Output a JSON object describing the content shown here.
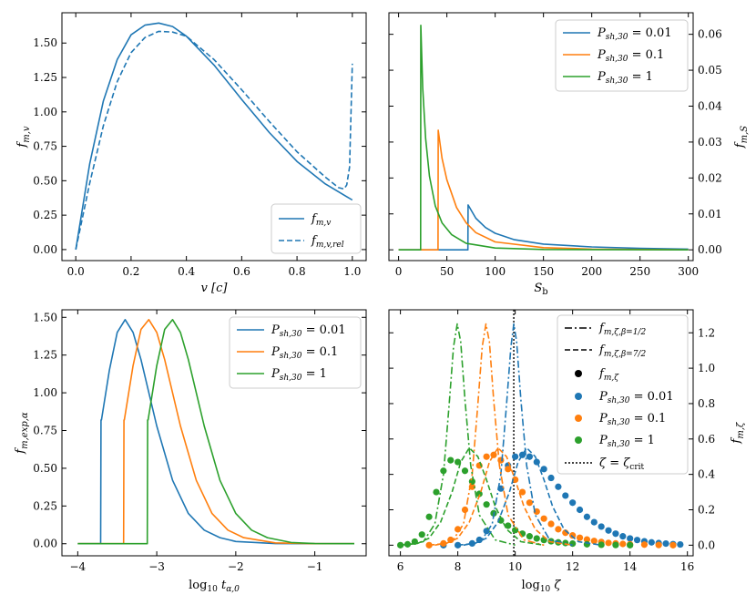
{
  "colors": {
    "blue": "#1f77b4",
    "orange": "#ff7f0e",
    "green": "#2ca02c",
    "black": "#000000"
  },
  "chart_data": [
    {
      "type": "line",
      "id": "p1",
      "xlabel": "v [c]",
      "ylabel": "f_{m,v}",
      "xlim": [
        -0.05,
        1.05
      ],
      "ylim": [
        -0.08,
        1.72
      ],
      "xticks": [
        0.0,
        0.2,
        0.4,
        0.6,
        0.8,
        1.0
      ],
      "yticks": [
        0.0,
        0.25,
        0.5,
        0.75,
        1.0,
        1.25,
        1.5
      ],
      "xtick_labels": [
        "0.0",
        "0.2",
        "0.4",
        "0.6",
        "0.8",
        "1.0"
      ],
      "ytick_labels": [
        "0.00",
        "0.25",
        "0.50",
        "0.75",
        "1.00",
        "1.25",
        "1.50"
      ],
      "legend": "lower-right",
      "series": [
        {
          "name": "f_{m,v}",
          "color": "blue",
          "dash": "solid",
          "x": [
            0.0,
            0.05,
            0.1,
            0.15,
            0.2,
            0.25,
            0.3,
            0.35,
            0.4,
            0.5,
            0.6,
            0.7,
            0.8,
            0.9,
            1.0
          ],
          "y": [
            0.0,
            0.62,
            1.08,
            1.38,
            1.56,
            1.63,
            1.645,
            1.62,
            1.55,
            1.34,
            1.09,
            0.85,
            0.64,
            0.48,
            0.36
          ]
        },
        {
          "name": "f_{m,v,rel}",
          "color": "blue",
          "dash": "dashed",
          "x": [
            0.0,
            0.05,
            0.1,
            0.15,
            0.2,
            0.25,
            0.3,
            0.35,
            0.4,
            0.5,
            0.6,
            0.7,
            0.8,
            0.9,
            0.95,
            0.97,
            0.98,
            0.99,
            1.0
          ],
          "y": [
            0.0,
            0.48,
            0.9,
            1.22,
            1.43,
            1.54,
            1.585,
            1.58,
            1.55,
            1.38,
            1.16,
            0.93,
            0.71,
            0.53,
            0.45,
            0.44,
            0.47,
            0.6,
            1.35
          ]
        }
      ]
    },
    {
      "type": "line",
      "id": "p2",
      "xlabel": "S_b",
      "ylabel": "f_{m,S}",
      "xlim": [
        -10,
        305
      ],
      "ylim": [
        -0.003,
        0.066
      ],
      "xticks": [
        0,
        50,
        100,
        150,
        200,
        250,
        300
      ],
      "yticks": [
        0.0,
        0.01,
        0.02,
        0.03,
        0.04,
        0.05,
        0.06
      ],
      "xtick_labels": [
        "0",
        "50",
        "100",
        "150",
        "200",
        "250",
        "300"
      ],
      "ytick_labels": [
        "0.00",
        "0.01",
        "0.02",
        "0.03",
        "0.04",
        "0.05",
        "0.06"
      ],
      "legend": "top-right",
      "series": [
        {
          "name": "P_{sh,30} = 0.01",
          "color": "blue",
          "dash": "solid",
          "x": [
            0,
            71,
            71.8,
            72,
            80,
            90,
            100,
            120,
            150,
            200,
            250,
            300
          ],
          "y": [
            0,
            0,
            0,
            0.0125,
            0.0088,
            0.0062,
            0.0046,
            0.0028,
            0.0016,
            0.0008,
            0.0004,
            0.0002
          ]
        },
        {
          "name": "P_{sh,30} = 0.1",
          "color": "orange",
          "dash": "solid",
          "x": [
            0,
            40,
            40.8,
            41,
            45,
            50,
            60,
            70,
            80,
            100,
            150,
            200,
            300
          ],
          "y": [
            0,
            0,
            0,
            0.0333,
            0.0255,
            0.0195,
            0.0118,
            0.0075,
            0.0048,
            0.0022,
            0.0006,
            0.0002,
            0.0
          ]
        },
        {
          "name": "P_{sh,30} = 1",
          "color": "green",
          "dash": "solid",
          "x": [
            0,
            22,
            22.8,
            23,
            25,
            28,
            32,
            38,
            45,
            55,
            70,
            100,
            150,
            300
          ],
          "y": [
            0,
            0,
            0,
            0.0625,
            0.045,
            0.031,
            0.0205,
            0.0122,
            0.0075,
            0.0042,
            0.0018,
            0.0005,
            0.0001,
            0.0
          ]
        }
      ]
    },
    {
      "type": "line",
      "id": "p3",
      "xlabel": "log10 t_{α,0}",
      "ylabel": "f_{m,exp,α}",
      "xlim": [
        -4.2,
        -0.35
      ],
      "ylim": [
        -0.08,
        1.55
      ],
      "xticks": [
        -4,
        -3,
        -2,
        -1
      ],
      "yticks": [
        0.0,
        0.25,
        0.5,
        0.75,
        1.0,
        1.25,
        1.5
      ],
      "xtick_labels": [
        "−4",
        "−3",
        "−2",
        "−1"
      ],
      "ytick_labels": [
        "0.00",
        "0.25",
        "0.50",
        "0.75",
        "1.00",
        "1.25",
        "1.50"
      ],
      "legend": "top-right",
      "series": [
        {
          "name": "P_{sh,30} = 0.01",
          "color": "blue",
          "dash": "solid",
          "x": [
            -4.0,
            -3.71,
            -3.705,
            -3.7,
            -3.6,
            -3.5,
            -3.4,
            -3.3,
            -3.2,
            -3.0,
            -2.8,
            -2.6,
            -2.4,
            -2.2,
            -2.0,
            -1.5,
            -1.0,
            -0.5
          ],
          "y": [
            0,
            0,
            0.82,
            0.82,
            1.15,
            1.4,
            1.485,
            1.4,
            1.22,
            0.78,
            0.42,
            0.2,
            0.09,
            0.04,
            0.015,
            0.001,
            0,
            0
          ]
        },
        {
          "name": "P_{sh,30} = 0.1",
          "color": "orange",
          "dash": "solid",
          "x": [
            -4.0,
            -3.42,
            -3.415,
            -3.41,
            -3.3,
            -3.2,
            -3.1,
            -3.0,
            -2.9,
            -2.7,
            -2.5,
            -2.3,
            -2.1,
            -1.9,
            -1.5,
            -1.0,
            -0.5
          ],
          "y": [
            0,
            0,
            0.82,
            0.82,
            1.18,
            1.42,
            1.485,
            1.4,
            1.22,
            0.78,
            0.42,
            0.2,
            0.09,
            0.04,
            0.006,
            0,
            0
          ]
        },
        {
          "name": "P_{sh,30} = 1",
          "color": "green",
          "dash": "solid",
          "x": [
            -4.0,
            -3.12,
            -3.115,
            -3.11,
            -3.0,
            -2.9,
            -2.8,
            -2.7,
            -2.6,
            -2.4,
            -2.2,
            -2.0,
            -1.8,
            -1.6,
            -1.3,
            -1.0,
            -0.5
          ],
          "y": [
            0,
            0,
            0.82,
            0.82,
            1.18,
            1.42,
            1.485,
            1.4,
            1.22,
            0.78,
            0.42,
            0.2,
            0.09,
            0.04,
            0.008,
            0.001,
            0
          ]
        }
      ]
    },
    {
      "type": "scatter",
      "id": "p4",
      "xlabel": "log10 ζ",
      "ylabel": "f_{m,ζ}",
      "xlim": [
        5.6,
        16.2
      ],
      "ylim": [
        -0.06,
        1.33
      ],
      "xticks": [
        6,
        8,
        10,
        12,
        14,
        16
      ],
      "yticks": [
        0.0,
        0.2,
        0.4,
        0.6,
        0.8,
        1.0,
        1.2
      ],
      "xtick_labels": [
        "6",
        "8",
        "10",
        "12",
        "14",
        "16"
      ],
      "ytick_labels": [
        "0.0",
        "0.2",
        "0.4",
        "0.6",
        "0.8",
        "1.0",
        "1.2"
      ],
      "legend": "top-right",
      "legend_entries": [
        "f_{m,ζ,β=1/2}",
        "f_{m,ζ,β=7/2}",
        "f_{m,ζ}",
        "P_{sh,30} = 0.01",
        "P_{sh,30} = 0.1",
        "P_{sh,30} = 1",
        "ζ = ζ_crit"
      ],
      "critical_x": 9.95,
      "series": [
        {
          "name": "P_{sh,30} = 0.01 (points)",
          "color": "blue",
          "x": [
            7.5,
            8.0,
            8.5,
            8.75,
            9.0,
            9.25,
            9.5,
            9.75,
            10.0,
            10.25,
            10.5,
            10.75,
            11.0,
            11.25,
            11.5,
            11.75,
            12.0,
            12.25,
            12.5,
            12.75,
            13.0,
            13.25,
            13.5,
            13.75,
            14.0,
            14.25,
            14.5,
            14.75,
            15.0,
            15.25,
            15.5,
            15.75
          ],
          "y": [
            0.0,
            0.0,
            0.01,
            0.03,
            0.08,
            0.18,
            0.32,
            0.45,
            0.5,
            0.51,
            0.5,
            0.47,
            0.43,
            0.38,
            0.33,
            0.28,
            0.24,
            0.2,
            0.16,
            0.13,
            0.105,
            0.083,
            0.065,
            0.05,
            0.038,
            0.029,
            0.022,
            0.016,
            0.012,
            0.009,
            0.006,
            0.004
          ]
        },
        {
          "name": "P_{sh,30} = 0.1 (points)",
          "color": "orange",
          "x": [
            7.0,
            7.5,
            7.75,
            8.0,
            8.25,
            8.5,
            8.75,
            9.0,
            9.25,
            9.5,
            9.75,
            10.0,
            10.25,
            10.5,
            10.75,
            11.0,
            11.25,
            11.5,
            11.75,
            12.0,
            12.25,
            12.5,
            12.75,
            13.0,
            13.25,
            13.5,
            13.75,
            14.0,
            14.5,
            15.0,
            15.5
          ],
          "y": [
            0.0,
            0.01,
            0.03,
            0.09,
            0.2,
            0.33,
            0.45,
            0.5,
            0.51,
            0.48,
            0.43,
            0.37,
            0.3,
            0.24,
            0.19,
            0.15,
            0.12,
            0.09,
            0.07,
            0.055,
            0.042,
            0.032,
            0.024,
            0.018,
            0.013,
            0.01,
            0.007,
            0.005,
            0.003,
            0.001,
            0.0
          ]
        },
        {
          "name": "P_{sh,30} = 1 (points)",
          "color": "green",
          "x": [
            6.0,
            6.25,
            6.5,
            6.75,
            7.0,
            7.25,
            7.5,
            7.75,
            8.0,
            8.25,
            8.5,
            8.75,
            9.0,
            9.25,
            9.5,
            9.75,
            10.0,
            10.25,
            10.5,
            10.75,
            11.0,
            11.25,
            11.5,
            11.75,
            12.0,
            12.5,
            13.0,
            13.5,
            14.0
          ],
          "y": [
            0.0,
            0.005,
            0.02,
            0.06,
            0.16,
            0.3,
            0.42,
            0.48,
            0.47,
            0.42,
            0.36,
            0.29,
            0.23,
            0.18,
            0.14,
            0.11,
            0.085,
            0.065,
            0.05,
            0.038,
            0.029,
            0.022,
            0.016,
            0.012,
            0.009,
            0.005,
            0.002,
            0.001,
            0.0
          ]
        },
        {
          "name": "P_{sh,30} = 0.01 β=1/2",
          "color": "blue",
          "dash": "dashdot",
          "x": [
            8.2,
            8.8,
            9.2,
            9.5,
            9.7,
            9.85,
            9.95,
            10.05,
            10.2,
            10.4,
            10.7,
            11.2,
            12.0
          ],
          "y": [
            0.0,
            0.02,
            0.12,
            0.4,
            0.8,
            1.12,
            1.25,
            1.15,
            0.82,
            0.45,
            0.17,
            0.03,
            0.0
          ]
        },
        {
          "name": "P_{sh,30} = 0.1 β=1/2",
          "color": "orange",
          "dash": "dashdot",
          "x": [
            7.2,
            7.8,
            8.2,
            8.5,
            8.7,
            8.85,
            8.98,
            9.1,
            9.25,
            9.45,
            9.75,
            10.3,
            11.0
          ],
          "y": [
            0.0,
            0.02,
            0.12,
            0.4,
            0.8,
            1.12,
            1.25,
            1.15,
            0.82,
            0.45,
            0.17,
            0.03,
            0.0
          ]
        },
        {
          "name": "P_{sh,30} = 1 β=1/2",
          "color": "green",
          "dash": "dashdot",
          "x": [
            6.2,
            6.8,
            7.2,
            7.5,
            7.7,
            7.85,
            7.98,
            8.1,
            8.25,
            8.45,
            8.75,
            9.3,
            10.0
          ],
          "y": [
            0.0,
            0.02,
            0.12,
            0.4,
            0.8,
            1.12,
            1.25,
            1.15,
            0.82,
            0.45,
            0.17,
            0.03,
            0.0
          ]
        },
        {
          "name": "P_{sh,30} = 0.01 β=7/2",
          "color": "blue",
          "dash": "dashed",
          "x": [
            8.0,
            8.6,
            9.0,
            9.4,
            9.8,
            10.1,
            10.4,
            10.7,
            11.0,
            11.3,
            11.7,
            12.2,
            13.0
          ],
          "y": [
            0.0,
            0.01,
            0.04,
            0.13,
            0.3,
            0.47,
            0.55,
            0.5,
            0.37,
            0.22,
            0.09,
            0.02,
            0.0
          ]
        },
        {
          "name": "P_{sh,30} = 0.1 β=7/2",
          "color": "orange",
          "dash": "dashed",
          "x": [
            7.0,
            7.6,
            8.0,
            8.4,
            8.8,
            9.1,
            9.4,
            9.7,
            10.0,
            10.3,
            10.7,
            11.2,
            12.0
          ],
          "y": [
            0.0,
            0.01,
            0.04,
            0.13,
            0.3,
            0.47,
            0.55,
            0.5,
            0.37,
            0.22,
            0.09,
            0.02,
            0.0
          ]
        },
        {
          "name": "P_{sh,30} = 1 β=7/2",
          "color": "green",
          "dash": "dashed",
          "x": [
            6.0,
            6.6,
            7.0,
            7.4,
            7.8,
            8.1,
            8.4,
            8.7,
            9.0,
            9.3,
            9.7,
            10.2,
            11.0
          ],
          "y": [
            0.0,
            0.01,
            0.04,
            0.13,
            0.3,
            0.47,
            0.55,
            0.5,
            0.37,
            0.22,
            0.09,
            0.02,
            0.0
          ]
        }
      ]
    }
  ]
}
